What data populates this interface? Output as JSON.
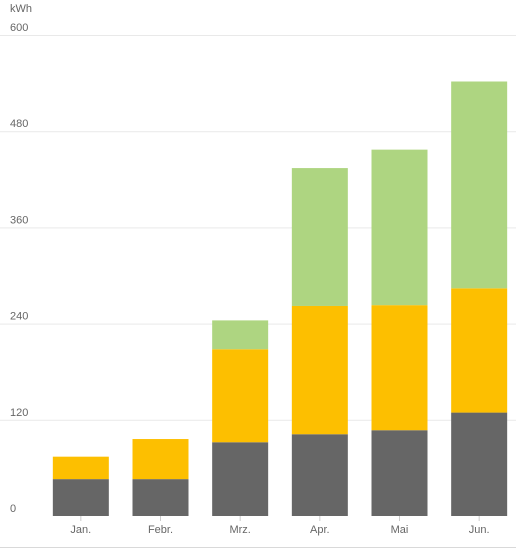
{
  "chart_data": {
    "type": "bar",
    "stacked": true,
    "ylabel": "kWh",
    "ylim": [
      0,
      600
    ],
    "yticks": [
      0,
      120,
      240,
      360,
      480,
      600
    ],
    "categories": [
      "Jan.",
      "Febr.",
      "Mrz.",
      "Apr.",
      "Mai",
      "Jun."
    ],
    "series": [
      {
        "color": "#666666",
        "values": [
          46,
          46,
          92,
          102,
          107,
          129
        ]
      },
      {
        "color": "#fdbf00",
        "values": [
          28,
          50,
          116,
          160,
          156,
          155
        ]
      },
      {
        "color": "#aed581",
        "values": [
          0,
          0,
          36,
          172,
          194,
          258
        ]
      }
    ],
    "grid": true,
    "legend": "none"
  }
}
